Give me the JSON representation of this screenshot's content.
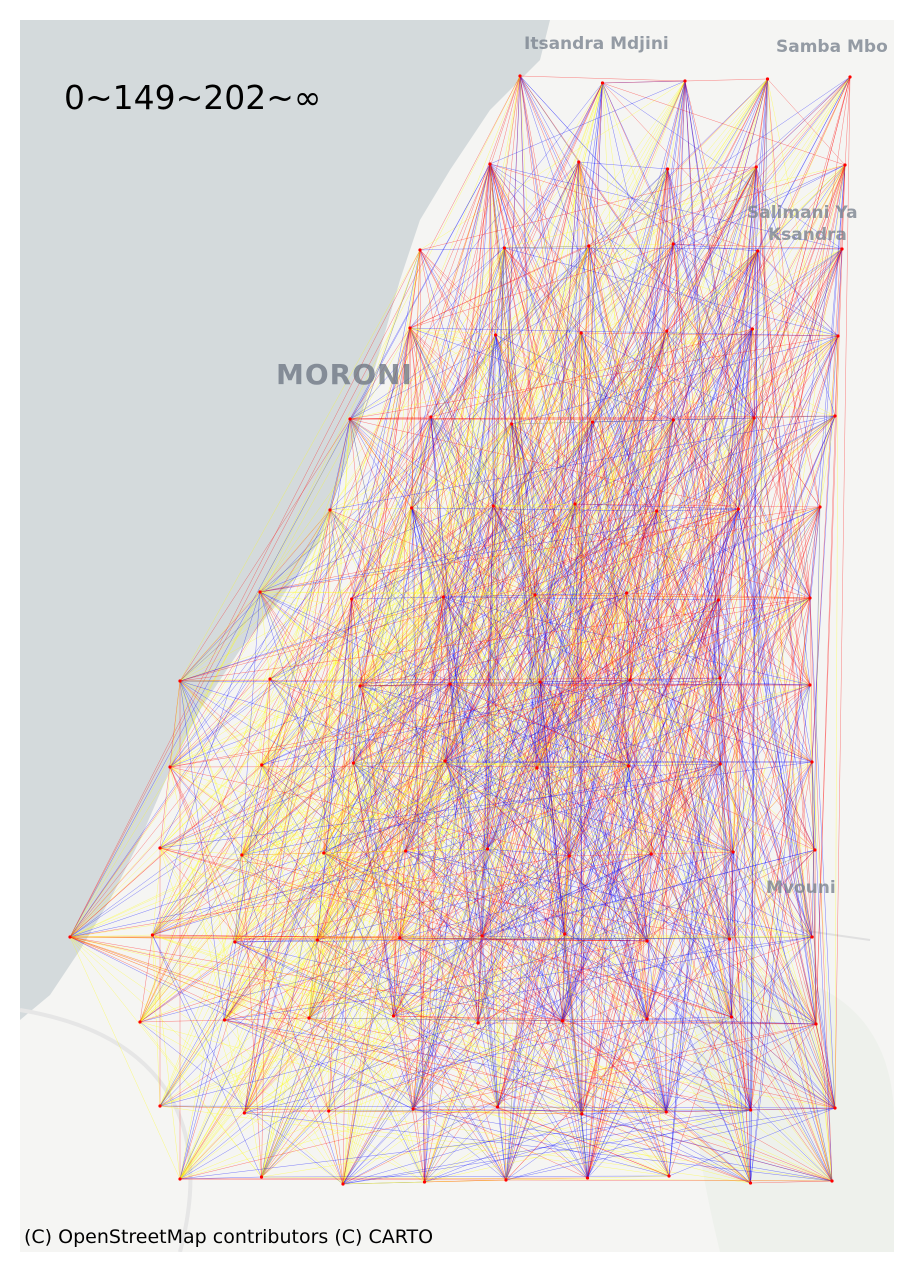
{
  "legend_title": "0~149~202~∞",
  "attribution": "(C) OpenStreetMap contributors (C) CARTO",
  "places": {
    "itsandra": "Itsandra Mdjini",
    "samba": "Samba Mbo",
    "salimani_1": "Salimani Ya",
    "salimani_2": "Ksandra",
    "moroni": "MORONI",
    "mvouni": "Mvouni"
  },
  "colors": {
    "sea": "#d4dadc",
    "land": "#f5f5f3",
    "low": "#0000ff",
    "mid": "#ff0000",
    "high": "#ffff00"
  },
  "network": {
    "type": "origin-destination flow lines between grid nodes",
    "class_breaks": [
      0,
      149,
      202
    ],
    "classes": [
      "0~149",
      "149~202",
      "202~∞"
    ]
  }
}
